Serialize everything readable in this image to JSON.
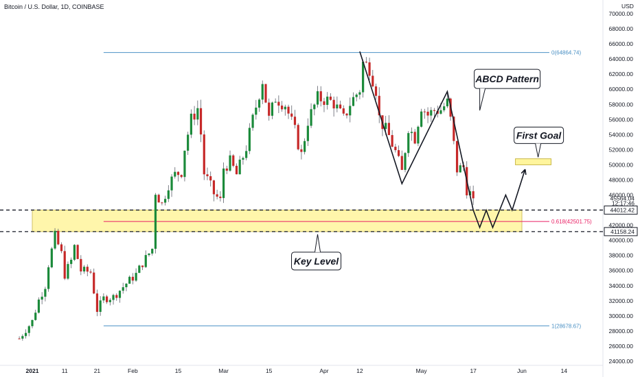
{
  "header": {
    "symbol_title": "Bitcoin / U.S. Dollar, 1D, COINBASE",
    "currency": "USD"
  },
  "colors": {
    "up": "#26a69a",
    "down": "#ef5350",
    "zone_fill": "#fff59d",
    "fib_blue": "#4a90c4",
    "fib_pink": "#e91e63",
    "price_tag_bg": "#ffffff",
    "candle_dark_up": "#1b8a3a",
    "candle_dark_down": "#c62828"
  },
  "chart_data": {
    "type": "candlestick",
    "title": "Bitcoin / U.S. Dollar, 1D, COINBASE",
    "ylim": [
      24000,
      71000
    ],
    "y_ticks": [
      "24000.00",
      "26000.00",
      "28000.00",
      "30000.00",
      "32000.00",
      "34000.00",
      "36000.00",
      "38000.00",
      "40000.00",
      "42000.00",
      "44000.00",
      "46000.00",
      "48000.00",
      "50000.00",
      "52000.00",
      "54000.00",
      "56000.00",
      "58000.00",
      "60000.00",
      "62000.00",
      "64000.00",
      "66000.00",
      "68000.00",
      "70000.00"
    ],
    "x_ticks": [
      {
        "label": "2021",
        "date": "2021-01-01"
      },
      {
        "label": "11",
        "date": "2021-01-11"
      },
      {
        "label": "21",
        "date": "2021-01-21"
      },
      {
        "label": "Feb",
        "date": "2021-02-01"
      },
      {
        "label": "15",
        "date": "2021-02-15"
      },
      {
        "label": "Mar",
        "date": "2021-03-01"
      },
      {
        "label": "15",
        "date": "2021-03-15"
      },
      {
        "label": "Apr",
        "date": "2021-04-01"
      },
      {
        "label": "12",
        "date": "2021-04-12"
      },
      {
        "label": "May",
        "date": "2021-05-01"
      },
      {
        "label": "17",
        "date": "2021-05-17"
      },
      {
        "label": "Jun",
        "date": "2021-06-01"
      },
      {
        "label": "14",
        "date": "2021-06-14"
      }
    ],
    "closes": [
      {
        "date": "2020-12-28",
        "close": 27000
      },
      {
        "date": "2021-01-01",
        "close": 29300
      },
      {
        "date": "2021-01-03",
        "close": 32100
      },
      {
        "date": "2021-01-05",
        "close": 34000
      },
      {
        "date": "2021-01-06",
        "close": 36800
      },
      {
        "date": "2021-01-08",
        "close": 40600
      },
      {
        "date": "2021-01-10",
        "close": 38200
      },
      {
        "date": "2021-01-11",
        "close": 35500
      },
      {
        "date": "2021-01-13",
        "close": 37300
      },
      {
        "date": "2021-01-14",
        "close": 39200
      },
      {
        "date": "2021-01-16",
        "close": 36000
      },
      {
        "date": "2021-01-19",
        "close": 35800
      },
      {
        "date": "2021-01-21",
        "close": 30800
      },
      {
        "date": "2021-01-23",
        "close": 32300
      },
      {
        "date": "2021-01-26",
        "close": 32500
      },
      {
        "date": "2021-01-28",
        "close": 33400
      },
      {
        "date": "2021-01-30",
        "close": 34300
      },
      {
        "date": "2021-02-02",
        "close": 35500
      },
      {
        "date": "2021-02-04",
        "close": 37000
      },
      {
        "date": "2021-02-07",
        "close": 38900
      },
      {
        "date": "2021-02-08",
        "close": 46400
      },
      {
        "date": "2021-02-10",
        "close": 44800
      },
      {
        "date": "2021-02-12",
        "close": 47400
      },
      {
        "date": "2021-02-14",
        "close": 48700
      },
      {
        "date": "2021-02-16",
        "close": 49100
      },
      {
        "date": "2021-02-17",
        "close": 52200
      },
      {
        "date": "2021-02-19",
        "close": 56000
      },
      {
        "date": "2021-02-21",
        "close": 57500
      },
      {
        "date": "2021-02-22",
        "close": 54100
      },
      {
        "date": "2021-02-23",
        "close": 48900
      },
      {
        "date": "2021-02-26",
        "close": 46200
      },
      {
        "date": "2021-02-28",
        "close": 45200
      },
      {
        "date": "2021-03-01",
        "close": 49600
      },
      {
        "date": "2021-03-03",
        "close": 50400
      },
      {
        "date": "2021-03-05",
        "close": 48700
      },
      {
        "date": "2021-03-08",
        "close": 52300
      },
      {
        "date": "2021-03-10",
        "close": 56000
      },
      {
        "date": "2021-03-13",
        "close": 61200
      },
      {
        "date": "2021-03-15",
        "close": 56000
      },
      {
        "date": "2021-03-17",
        "close": 58900
      },
      {
        "date": "2021-03-20",
        "close": 58000
      },
      {
        "date": "2021-03-23",
        "close": 54400
      },
      {
        "date": "2021-03-25",
        "close": 51300
      },
      {
        "date": "2021-03-27",
        "close": 55800
      },
      {
        "date": "2021-03-30",
        "close": 58800
      },
      {
        "date": "2021-04-01",
        "close": 58700
      },
      {
        "date": "2021-04-04",
        "close": 58200
      },
      {
        "date": "2021-04-07",
        "close": 56000
      },
      {
        "date": "2021-04-09",
        "close": 58100
      },
      {
        "date": "2021-04-12",
        "close": 60000
      },
      {
        "date": "2021-04-13",
        "close": 63500
      },
      {
        "date": "2021-04-15",
        "close": 62900
      },
      {
        "date": "2021-04-17",
        "close": 60000
      },
      {
        "date": "2021-04-18",
        "close": 56200
      },
      {
        "date": "2021-04-21",
        "close": 53800
      },
      {
        "date": "2021-04-23",
        "close": 51700
      },
      {
        "date": "2021-04-25",
        "close": 49000
      },
      {
        "date": "2021-04-27",
        "close": 55000
      },
      {
        "date": "2021-04-29",
        "close": 53600
      },
      {
        "date": "2021-05-01",
        "close": 57800
      },
      {
        "date": "2021-05-03",
        "close": 56600
      },
      {
        "date": "2021-05-05",
        "close": 57200
      },
      {
        "date": "2021-05-07",
        "close": 57300
      },
      {
        "date": "2021-05-09",
        "close": 58200
      },
      {
        "date": "2021-05-10",
        "close": 55900
      },
      {
        "date": "2021-05-12",
        "close": 49400
      },
      {
        "date": "2021-05-14",
        "close": 49700
      },
      {
        "date": "2021-05-15",
        "close": 46800
      },
      {
        "date": "2021-05-17",
        "close": 45564
      }
    ],
    "annotations": {
      "fib_levels": [
        {
          "label": "0(64864.74)",
          "price": 64864.74,
          "color": "#4a90c4",
          "from": "2021-01-23",
          "to": "2021-06-01"
        },
        {
          "label": "0.618(42501.75)",
          "price": 42501.75,
          "color": "#e91e63",
          "from": "2021-01-23",
          "to": "2021-06-01"
        },
        {
          "label": "1(28678.67)",
          "price": 28678.67,
          "color": "#4a90c4",
          "from": "2021-01-23",
          "to": "2021-06-01"
        }
      ],
      "key_zone": {
        "top": 44012.42,
        "bottom": 41158.24,
        "from": "2021-01-01",
        "to": "2021-06-01"
      },
      "goal_zone": {
        "top": 50800,
        "bottom": 50000,
        "from": "2021-05-30",
        "to": "2021-06-10"
      },
      "dashed_levels": [
        44012.42,
        41158.24
      ],
      "price_tags": [
        {
          "label": "45564.04",
          "price": 45564.04
        },
        {
          "label": "12:17:46",
          "price": 44900
        },
        {
          "label": "44012.42",
          "price": 44012.42
        },
        {
          "label": "41158.24",
          "price": 41158.24
        }
      ],
      "abcd_path": [
        {
          "date": "2021-04-12",
          "price": 65000
        },
        {
          "date": "2021-04-25",
          "price": 47500
        },
        {
          "date": "2021-05-09",
          "price": 59700
        },
        {
          "date": "2021-05-17",
          "price": 44000
        },
        {
          "date": "2021-05-19",
          "price": 41700
        },
        {
          "date": "2021-05-21",
          "price": 44000
        },
        {
          "date": "2021-05-23",
          "price": 41700
        },
        {
          "date": "2021-05-27",
          "price": 46000
        },
        {
          "date": "2021-05-29",
          "price": 44000
        },
        {
          "date": "2021-06-02",
          "price": 49400
        }
      ],
      "callouts": [
        {
          "text": "ABCD Pattern",
          "anchor_date": "2021-05-19",
          "anchor_price": 57200
        },
        {
          "text": "First Goal",
          "anchor_date": "2021-06-06",
          "anchor_price": 51000
        },
        {
          "text": "Key Level",
          "anchor_date": "2021-03-30",
          "anchor_price": 40800
        }
      ]
    }
  }
}
